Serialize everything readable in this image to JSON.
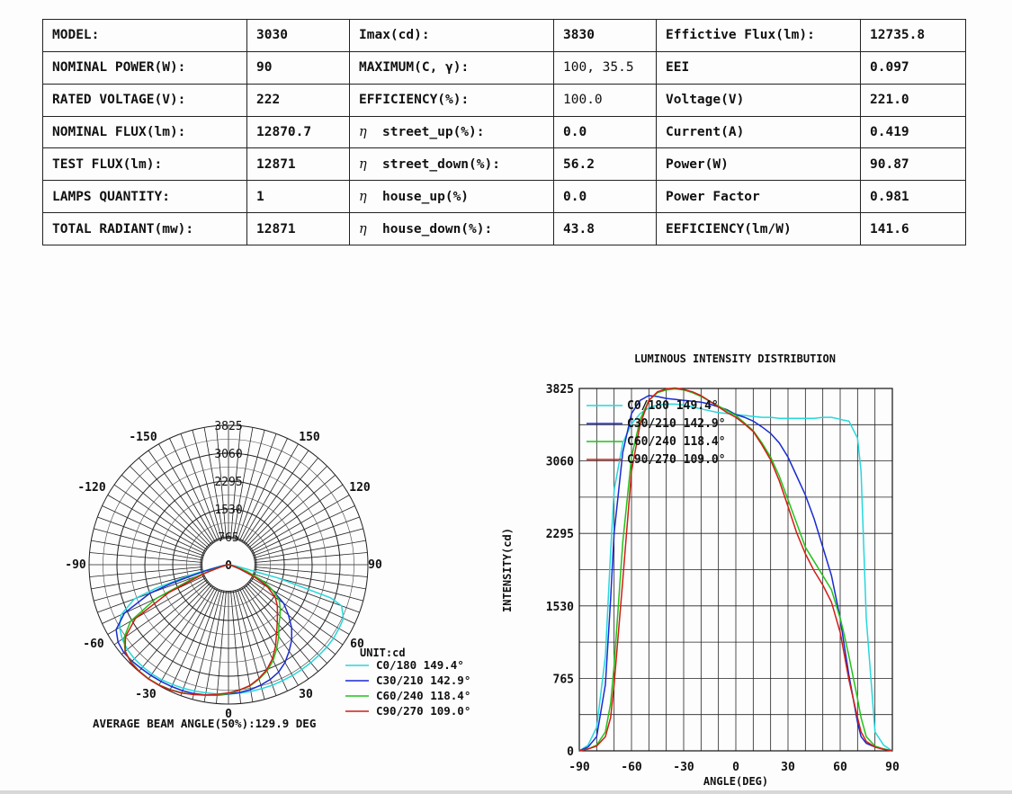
{
  "specs": {
    "columns": [
      {
        "labels": [
          "MODEL:",
          "NOMINAL POWER(W):",
          "RATED VOLTAGE(V):",
          "NOMINAL FLUX(lm):",
          "TEST FLUX(lm):",
          "LAMPS QUANTITY:",
          "TOTAL RADIANT(mw):"
        ],
        "values": [
          "3030",
          "90",
          "222",
          "12870.7",
          "12871",
          "1",
          "12871"
        ]
      },
      {
        "labels": [
          "Imax(cd):",
          "MAXIMUM(C, γ):",
          "EFFICIENCY(%):",
          "street_up(%):",
          "street_down(%):",
          "house_up(%)",
          "house_down(%):"
        ],
        "values": [
          "3830",
          "100, 35.5",
          "100.0",
          "0.0",
          "56.2",
          "0.0",
          "43.8"
        ]
      },
      {
        "labels": [
          "Effictive Flux(lm):",
          "EEI",
          "Voltage(V)",
          "Current(A)",
          "Power(W)",
          "Power Factor",
          "EEFICIENCY(lm/W)"
        ],
        "values": [
          "12735.8",
          "0.097",
          "221.0",
          "0.419",
          "90.87",
          "0.981",
          "141.6"
        ]
      }
    ],
    "eta_symbol": "η"
  },
  "chart_data": [
    {
      "type": "polar",
      "unit_label": "UNIT:cd",
      "rings": [
        "765",
        "1530",
        "2295",
        "3060",
        "3825"
      ],
      "rmax": 3825,
      "angle_labels": [
        "-150",
        "150",
        "-120",
        "120",
        "-90",
        "90",
        "-60",
        "60",
        "-30",
        "30",
        "0"
      ],
      "center_label": "0",
      "footer": "AVERAGE BEAM ANGLE(50%):129.9 DEG",
      "series": [
        {
          "name": "C0/180 149.4°",
          "color": "#26d7dd"
        },
        {
          "name": "C30/210 142.9°",
          "color": "#1a2bd0"
        },
        {
          "name": "C60/240 118.4°",
          "color": "#22c21a"
        },
        {
          "name": "C90/270 109.0°",
          "color": "#d11d16"
        }
      ]
    },
    {
      "type": "line",
      "title": "LUMINOUS INTENSITY DISTRIBUTION",
      "xlabel": "ANGLE(DEG)",
      "ylabel": "INTENSITY(cd)",
      "xlim": [
        -90,
        90
      ],
      "ylim": [
        0,
        3825
      ],
      "xticks": [
        "-90",
        "-60",
        "-30",
        "0",
        "30",
        "60",
        "90"
      ],
      "yticks": [
        "0",
        "765",
        "1530",
        "2295",
        "3060",
        "3825"
      ],
      "grid": true,
      "legend_position": "top-left",
      "x": [
        -90,
        -85,
        -80,
        -75,
        -72,
        -70,
        -65,
        -60,
        -55,
        -50,
        -45,
        -40,
        -35,
        -30,
        -25,
        -20,
        -15,
        -10,
        -5,
        0,
        5,
        10,
        15,
        20,
        25,
        30,
        35,
        40,
        45,
        50,
        55,
        60,
        62,
        65,
        70,
        72,
        75,
        80,
        85,
        90
      ],
      "series": [
        {
          "name": "C0/180 149.4°",
          "color": "#26d7dd",
          "values": [
            0,
            60,
            250,
            1000,
            2100,
            2750,
            3250,
            3450,
            3560,
            3620,
            3650,
            3660,
            3660,
            3650,
            3630,
            3610,
            3590,
            3570,
            3560,
            3550,
            3540,
            3530,
            3520,
            3520,
            3510,
            3510,
            3510,
            3510,
            3510,
            3520,
            3520,
            3500,
            3490,
            3480,
            3300,
            2950,
            1400,
            200,
            60,
            0
          ]
        },
        {
          "name": "C30/210 142.9°",
          "color": "#1a2bd0",
          "values": [
            0,
            40,
            150,
            700,
            1600,
            2300,
            3150,
            3560,
            3700,
            3750,
            3740,
            3720,
            3710,
            3700,
            3690,
            3680,
            3660,
            3630,
            3600,
            3550,
            3520,
            3480,
            3420,
            3350,
            3250,
            3100,
            2900,
            2700,
            2450,
            2150,
            1850,
            1400,
            1150,
            800,
            300,
            150,
            80,
            40,
            20,
            0
          ]
        },
        {
          "name": "C60/240 118.4°",
          "color": "#22c21a",
          "values": [
            0,
            20,
            60,
            200,
            500,
            900,
            2200,
            3100,
            3500,
            3700,
            3780,
            3810,
            3820,
            3810,
            3780,
            3740,
            3690,
            3640,
            3590,
            3540,
            3460,
            3380,
            3250,
            3100,
            2900,
            2650,
            2400,
            2150,
            2000,
            1850,
            1700,
            1400,
            1250,
            1000,
            550,
            350,
            150,
            50,
            20,
            0
          ]
        },
        {
          "name": "C90/270 109.0°",
          "color": "#d11d16",
          "values": [
            0,
            20,
            50,
            150,
            350,
            700,
            1800,
            2950,
            3450,
            3700,
            3790,
            3820,
            3830,
            3815,
            3790,
            3750,
            3690,
            3630,
            3570,
            3520,
            3450,
            3370,
            3230,
            3070,
            2850,
            2580,
            2300,
            2080,
            1900,
            1750,
            1570,
            1250,
            1050,
            750,
            350,
            200,
            100,
            40,
            15,
            0
          ]
        }
      ]
    }
  ]
}
